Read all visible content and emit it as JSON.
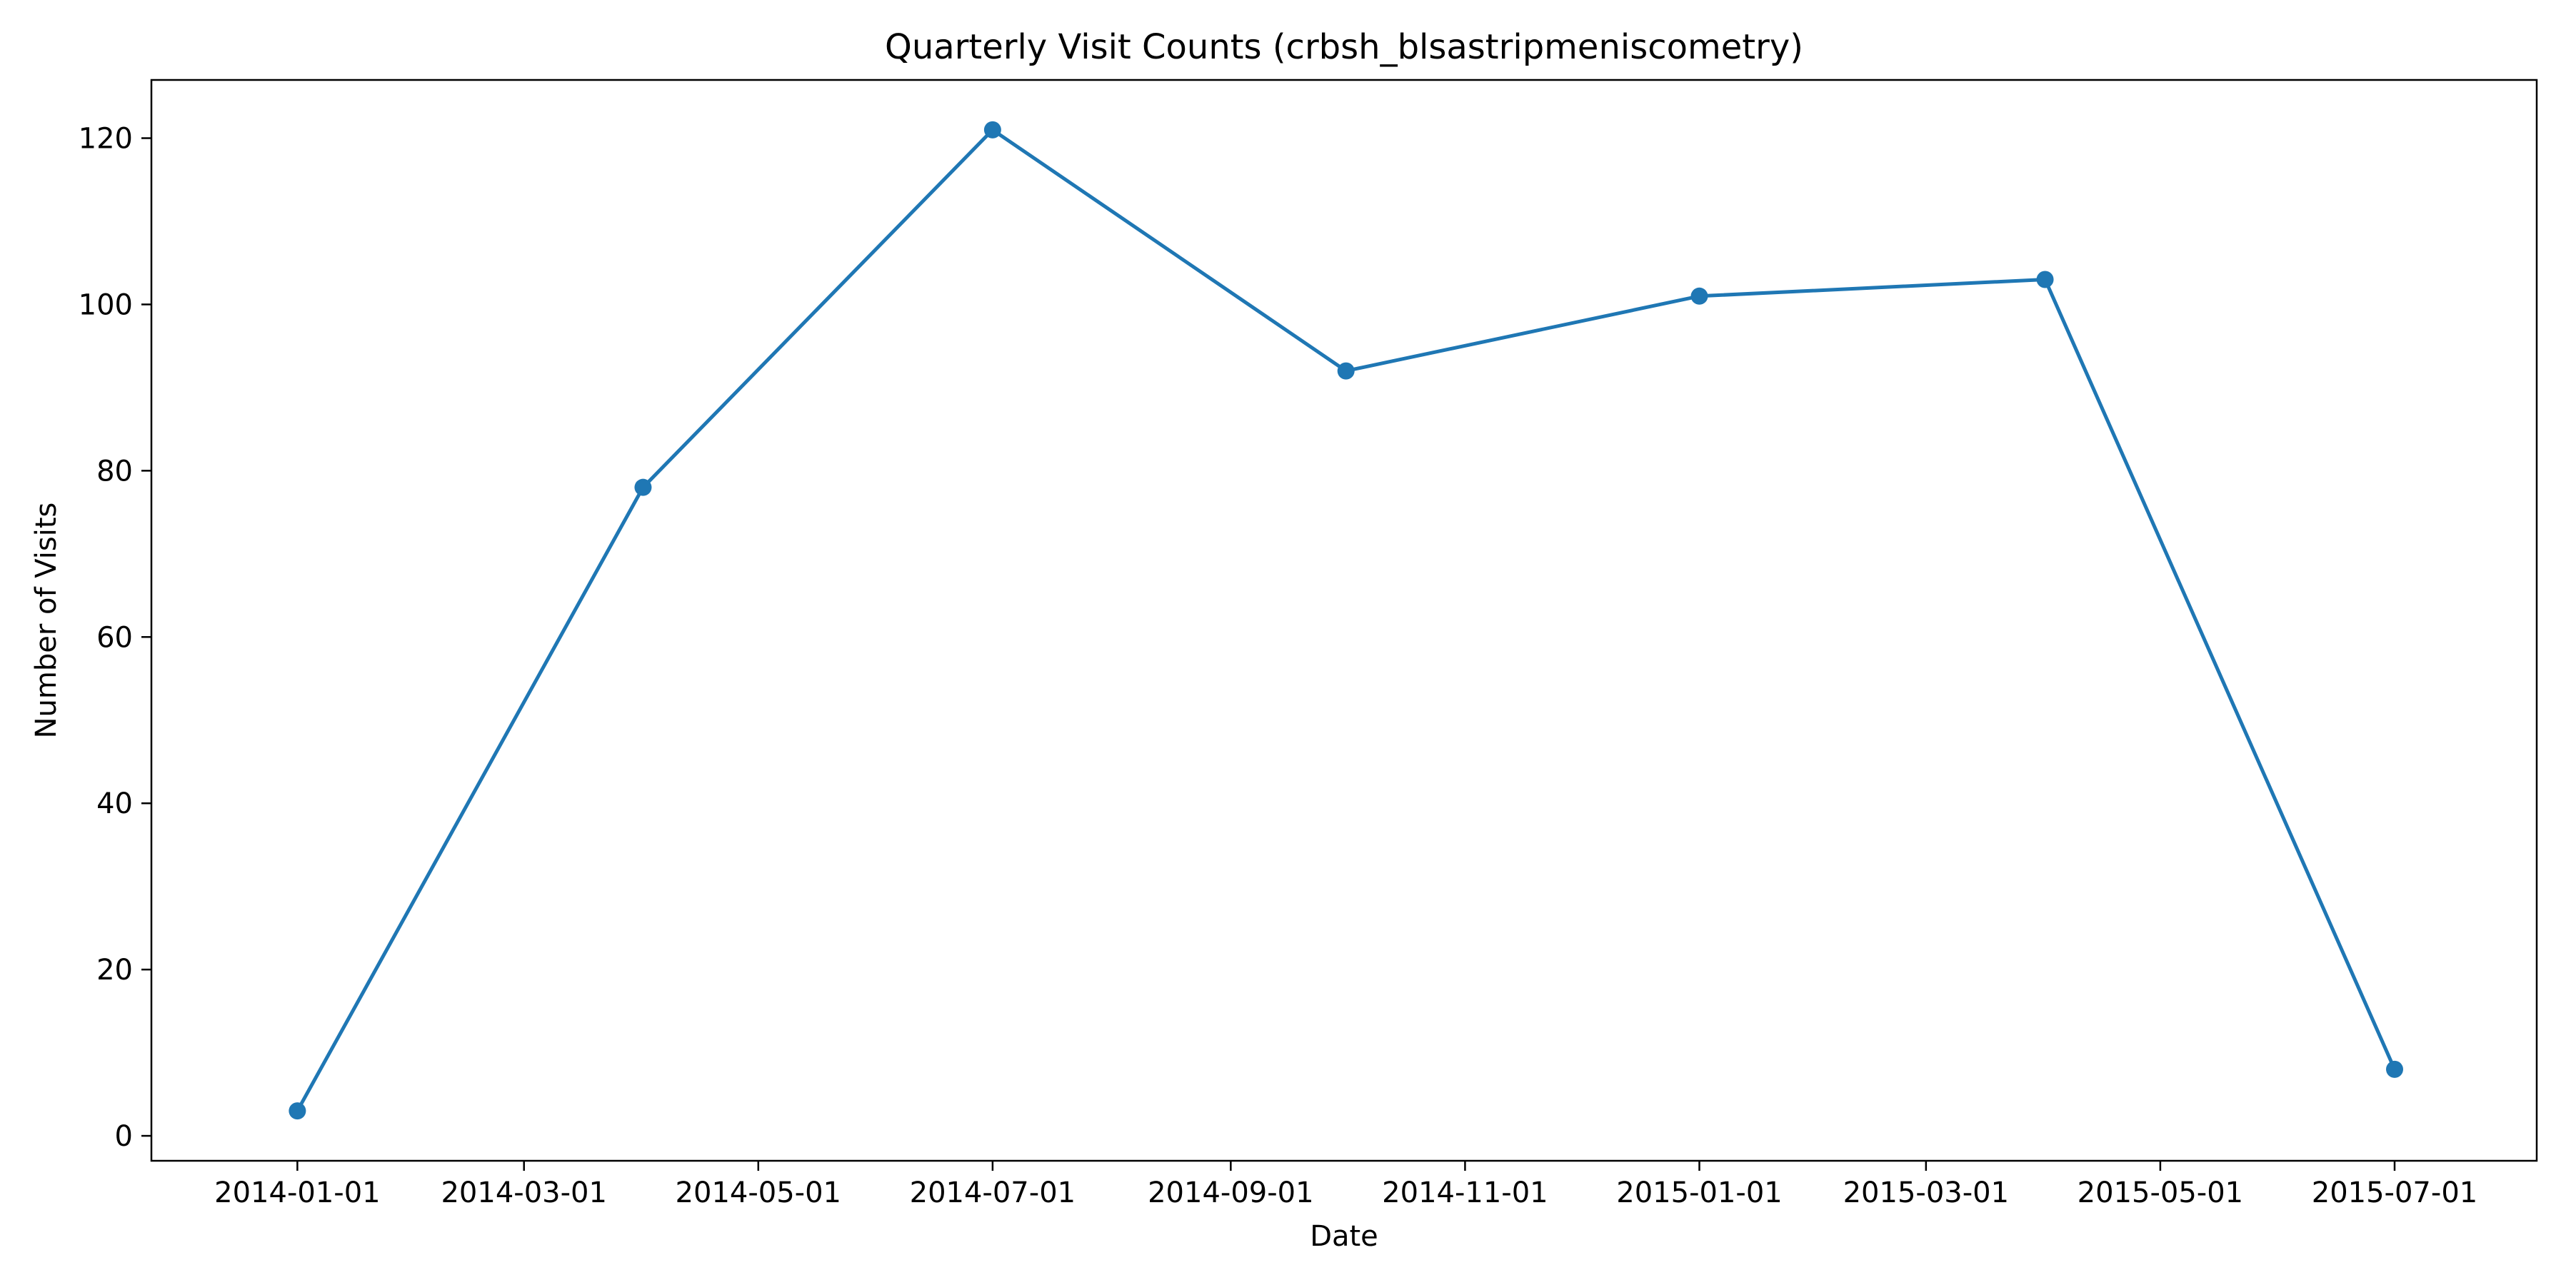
{
  "chart_data": {
    "type": "line",
    "title": "Quarterly Visit Counts (crbsh_blsastripmeniscometry)",
    "xlabel": "Date",
    "ylabel": "Number of Visits",
    "x": [
      "2014-01-01",
      "2014-04-01",
      "2014-07-01",
      "2014-10-01",
      "2015-01-01",
      "2015-04-01",
      "2015-07-01"
    ],
    "series": [
      {
        "values": [
          3,
          78,
          121,
          92,
          101,
          103,
          8
        ],
        "color": "#1f77b4"
      }
    ],
    "xlim": [
      "2013-11-24",
      "2015-08-07"
    ],
    "ylim": [
      -3,
      127
    ],
    "x_ticks": [
      "2014-01-01",
      "2014-03-01",
      "2014-05-01",
      "2014-07-01",
      "2014-09-01",
      "2014-11-01",
      "2015-01-01",
      "2015-03-01",
      "2015-05-01",
      "2015-07-01"
    ],
    "y_ticks": [
      0,
      20,
      40,
      60,
      80,
      100,
      120
    ],
    "grid": false,
    "legend": "none"
  }
}
